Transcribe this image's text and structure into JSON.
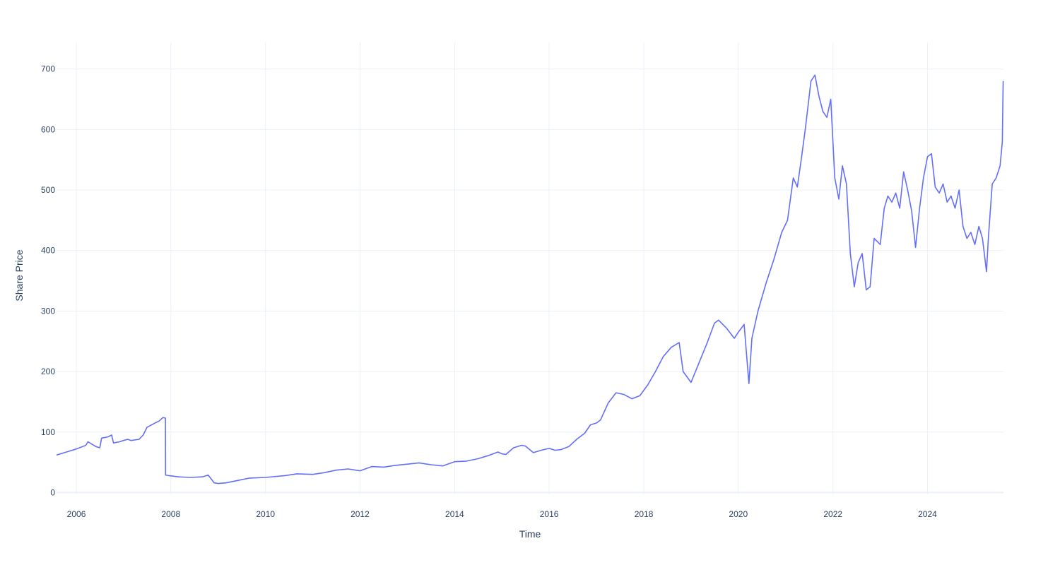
{
  "chart_data": {
    "type": "line",
    "title": "",
    "xlabel": "Time",
    "ylabel": "Share Price",
    "x_type": "date",
    "xlim": [
      "2005-08-01",
      "2025-08-10"
    ],
    "ylim": [
      -3,
      744
    ],
    "x_ticks": [
      "2006-01-01",
      "2008-01-01",
      "2010-01-01",
      "2012-01-01",
      "2014-01-01",
      "2016-01-01",
      "2018-01-01",
      "2020-01-01",
      "2022-01-01",
      "2024-01-01"
    ],
    "x_tick_labels": [
      "2006",
      "2008",
      "2010",
      "2012",
      "2014",
      "2016",
      "2018",
      "2020",
      "2022",
      "2024"
    ],
    "y_ticks": [
      0,
      100,
      200,
      300,
      400,
      500,
      600,
      700
    ],
    "grid": true,
    "legend": "none",
    "line_color": "#636efa",
    "grid_color": "#ebf0f8",
    "series": [
      {
        "x": [
          "2005-08-01",
          "2005-10-01",
          "2006-01-01",
          "2006-03-15",
          "2006-04-01",
          "2006-06-01",
          "2006-07-01",
          "2006-07-15",
          "2006-09-01",
          "2006-10-01",
          "2006-10-15",
          "2006-12-01",
          "2007-01-01",
          "2007-02-01",
          "2007-03-01",
          "2007-05-01",
          "2007-06-01",
          "2007-07-01",
          "2007-09-01",
          "2007-10-01",
          "2007-11-01",
          "2007-11-20",
          "2007-11-21",
          "2007-12-15",
          "2008-03-01",
          "2008-06-01",
          "2008-09-01",
          "2008-10-15",
          "2008-12-01",
          "2009-01-01",
          "2009-03-01",
          "2009-06-01",
          "2009-09-01",
          "2010-01-01",
          "2010-06-01",
          "2010-09-01",
          "2011-01-01",
          "2011-04-01",
          "2011-07-01",
          "2011-10-01",
          "2012-01-01",
          "2012-04-01",
          "2012-07-01",
          "2012-10-01",
          "2013-01-01",
          "2013-04-01",
          "2013-07-01",
          "2013-10-01",
          "2014-01-01",
          "2014-04-01",
          "2014-07-01",
          "2014-10-01",
          "2014-12-01",
          "2015-01-01",
          "2015-02-01",
          "2015-04-01",
          "2015-06-01",
          "2015-07-01",
          "2015-09-01",
          "2015-11-01",
          "2016-01-01",
          "2016-02-15",
          "2016-04-01",
          "2016-06-01",
          "2016-08-01",
          "2016-10-01",
          "2016-11-15",
          "2017-01-01",
          "2017-02-01",
          "2017-04-01",
          "2017-06-01",
          "2017-08-01",
          "2017-10-01",
          "2017-12-01",
          "2018-02-01",
          "2018-04-01",
          "2018-06-01",
          "2018-08-01",
          "2018-10-01",
          "2018-11-01",
          "2019-01-01",
          "2019-03-01",
          "2019-05-01",
          "2019-07-01",
          "2019-08-01",
          "2019-10-01",
          "2019-12-01",
          "2020-01-01",
          "2020-02-15",
          "2020-03-23",
          "2020-04-15",
          "2020-06-01",
          "2020-08-01",
          "2020-10-01",
          "2020-12-01",
          "2021-01-15",
          "2021-03-01",
          "2021-04-01",
          "2021-05-01",
          "2021-06-01",
          "2021-07-15",
          "2021-08-15",
          "2021-09-15",
          "2021-10-15",
          "2021-11-15",
          "2021-12-15",
          "2022-01-15",
          "2022-02-15",
          "2022-03-15",
          "2022-04-15",
          "2022-05-15",
          "2022-06-15",
          "2022-07-15",
          "2022-08-15",
          "2022-09-15",
          "2022-10-15",
          "2022-11-15",
          "2023-01-01",
          "2023-02-01",
          "2023-03-01",
          "2023-04-01",
          "2023-05-01",
          "2023-06-01",
          "2023-07-01",
          "2023-08-01",
          "2023-09-01",
          "2023-10-01",
          "2023-11-01",
          "2023-12-01",
          "2024-01-01",
          "2024-02-01",
          "2024-03-01",
          "2024-04-01",
          "2024-05-01",
          "2024-06-01",
          "2024-07-01",
          "2024-08-01",
          "2024-09-01",
          "2024-10-01",
          "2024-11-01",
          "2024-12-01",
          "2025-01-01",
          "2025-02-01",
          "2025-03-01",
          "2025-04-01",
          "2025-04-15",
          "2025-05-15",
          "2025-06-15",
          "2025-07-15",
          "2025-08-01",
          "2025-08-05",
          "2025-08-08"
        ],
        "y": [
          62,
          66,
          72,
          78,
          84,
          76,
          74,
          90,
          92,
          95,
          82,
          84,
          86,
          88,
          86,
          88,
          95,
          108,
          115,
          118,
          124,
          123,
          29,
          28,
          26,
          25,
          26,
          29,
          16,
          15,
          16,
          20,
          24,
          25,
          28,
          31,
          30,
          33,
          37,
          39,
          36,
          43,
          42,
          45,
          47,
          49,
          46,
          44,
          51,
          52,
          56,
          62,
          67,
          64,
          63,
          74,
          78,
          77,
          66,
          70,
          73,
          70,
          71,
          76,
          88,
          98,
          112,
          115,
          120,
          148,
          165,
          162,
          155,
          160,
          178,
          200,
          225,
          240,
          248,
          200,
          182,
          213,
          245,
          280,
          285,
          272,
          255,
          265,
          278,
          180,
          255,
          300,
          345,
          385,
          430,
          450,
          520,
          505,
          550,
          600,
          680,
          690,
          655,
          630,
          620,
          650,
          520,
          485,
          540,
          510,
          395,
          340,
          380,
          395,
          335,
          340,
          420,
          410,
          470,
          490,
          480,
          495,
          470,
          530,
          500,
          465,
          405,
          470,
          520,
          555,
          560,
          505,
          495,
          510,
          480,
          490,
          470,
          500,
          440,
          420,
          430,
          410,
          440,
          420,
          365,
          420,
          510,
          520,
          540,
          580,
          640,
          680
        ]
      }
    ]
  }
}
